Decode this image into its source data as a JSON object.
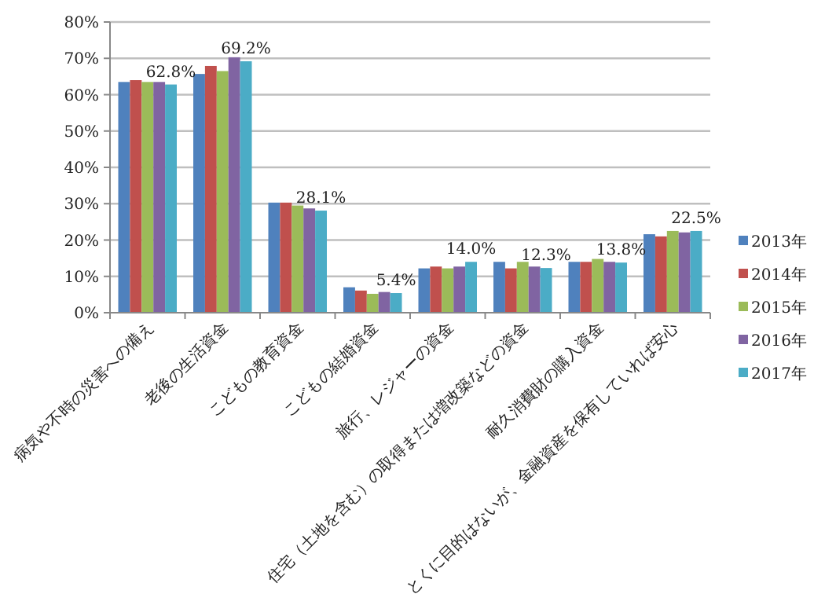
{
  "chart_data": {
    "type": "bar",
    "categories": [
      "病気や不時の災害への備え",
      "老後の生活資金",
      "こどもの教育資金",
      "こどもの結婚資金",
      "旅行、レジャーの資金",
      "住宅（土地を含む）の取得または増改築などの資金",
      "耐久消費財の購入資金",
      "とくに目的はないが、金融資産を保有していれば安心"
    ],
    "series": [
      {
        "name": "2013年",
        "color": "#4f81bd",
        "values": [
          63.5,
          65.7,
          30.3,
          7.0,
          12.2,
          14.0,
          14.0,
          21.6
        ]
      },
      {
        "name": "2014年",
        "color": "#c0504d",
        "values": [
          64.0,
          67.9,
          30.3,
          6.1,
          12.7,
          12.2,
          14.0,
          21.0
        ]
      },
      {
        "name": "2015年",
        "color": "#9bbb59",
        "values": [
          63.5,
          66.5,
          29.5,
          5.2,
          12.2,
          14.0,
          14.8,
          22.5
        ]
      },
      {
        "name": "2016年",
        "color": "#8064a2",
        "values": [
          63.5,
          70.3,
          28.7,
          5.7,
          12.7,
          12.7,
          14.0,
          22.1
        ]
      },
      {
        "name": "2017年",
        "color": "#4bacc6",
        "values": [
          62.8,
          69.2,
          28.1,
          5.4,
          14.0,
          12.3,
          13.8,
          22.5
        ],
        "value_labels": [
          "62.8%",
          "69.2%",
          "28.1%",
          "5.4%",
          "14.0%",
          "12.3%",
          "13.8%",
          "22.5%"
        ]
      }
    ],
    "ylim": [
      0,
      80
    ],
    "yticks": [
      {
        "value": 0,
        "label": "0%"
      },
      {
        "value": 10,
        "label": "10%"
      },
      {
        "value": 20,
        "label": "20%"
      },
      {
        "value": 30,
        "label": "30%"
      },
      {
        "value": 40,
        "label": "40%"
      },
      {
        "value": 50,
        "label": "50%"
      },
      {
        "value": 60,
        "label": "60%"
      },
      {
        "value": 70,
        "label": "70%"
      },
      {
        "value": 80,
        "label": "80%"
      }
    ],
    "grid": "y",
    "legend": "right"
  }
}
